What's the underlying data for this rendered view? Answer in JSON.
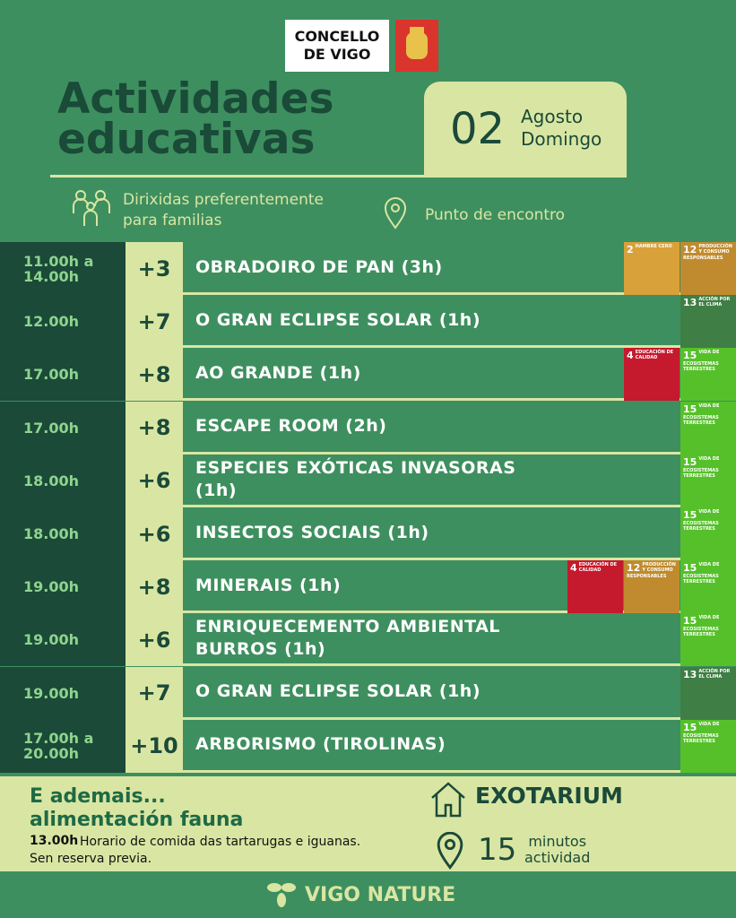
{
  "header": {
    "logo": "CONCELLO DE VIGO",
    "title": "Actividades educativas",
    "day": "02",
    "month": "Agosto",
    "weekday": "Domingo",
    "audience": "Dirixidas preferentemente para familias",
    "meeting_point": "Punto de encontro"
  },
  "rows": [
    {
      "time": "11.00h a 14.00h",
      "age": "+3",
      "activity": "OBRADOIRO DE PAN  (3h)",
      "badges": [
        {
          "number": "2",
          "label": "HAMBRE CERO"
        },
        {
          "number": "12",
          "label": "PRODUCCIÓN Y CONSUMO RESPONSABLES"
        }
      ]
    },
    {
      "time": "12.00h",
      "age": "+7",
      "activity": "O GRAN ECLIPSE SOLAR (1h)",
      "badges": [
        {
          "number": "13",
          "label": "ACCIÓN POR EL CLIMA"
        }
      ]
    },
    {
      "time": "17.00h",
      "age": "+8",
      "activity": "AO GRANDE (1h)",
      "badges": [
        {
          "number": "4",
          "label": "EDUCACIÓN DE CALIDAD"
        },
        {
          "number": "15",
          "label": "VIDA DE ECOSISTEMAS TERRESTRES"
        }
      ]
    },
    {
      "time": "17.00h",
      "age": "+8",
      "activity": "ESCAPE ROOM (2h)",
      "badges": [
        {
          "number": "15",
          "label": "VIDA DE ECOSISTEMAS TERRESTRES"
        }
      ]
    },
    {
      "time": "18.00h",
      "age": "+6",
      "activity": "ESPECIES EXÓTICAS  INVASORAS (1h)",
      "badges": [
        {
          "number": "15",
          "label": "VIDA DE ECOSISTEMAS TERRESTRES"
        }
      ]
    },
    {
      "time": "18.00h",
      "age": "+6",
      "activity": "INSECTOS SOCIAIS (1h)",
      "badges": [
        {
          "number": "15",
          "label": "VIDA DE ECOSISTEMAS TERRESTRES"
        }
      ]
    },
    {
      "time": "19.00h",
      "age": "+8",
      "activity": "MINERAIS (1h)",
      "badges": [
        {
          "number": "4",
          "label": "EDUCACIÓN DE CALIDAD"
        },
        {
          "number": "12",
          "label": "PRODUCCIÓN Y CONSUMO RESPONSABLES"
        },
        {
          "number": "15",
          "label": "VIDA DE ECOSISTEMAS TERRESTRES"
        }
      ]
    },
    {
      "time": "19.00h",
      "age": "+6",
      "activity": "ENRIQUECEMENTO AMBIENTAL BURROS (1h)",
      "badges": [
        {
          "number": "15",
          "label": "VIDA DE ECOSISTEMAS TERRESTRES"
        }
      ]
    },
    {
      "time": "19.00h",
      "age": "+7",
      "activity": "O GRAN ECLIPSE SOLAR (1h)",
      "badges": [
        {
          "number": "13",
          "label": "ACCIÓN POR EL CLIMA"
        }
      ]
    },
    {
      "time": "17.00h a 20.00h",
      "age": "+10",
      "activity": "ARBORISMO (TIROLINAS)",
      "badges": [
        {
          "number": "15",
          "label": "VIDA DE ECOSISTEMAS TERRESTRES"
        }
      ]
    }
  ],
  "extra": {
    "title": "E ademais... alimentación fauna",
    "time": "13.00h",
    "text": "Horario de comida das tartarugas e iguanas. Sen reserva previa.",
    "place": "EXOTARIUM",
    "duration": "15",
    "duration_unit": "minutos",
    "duration_note": "actividad"
  },
  "footer": {
    "brand": "VIGO NATURE"
  }
}
